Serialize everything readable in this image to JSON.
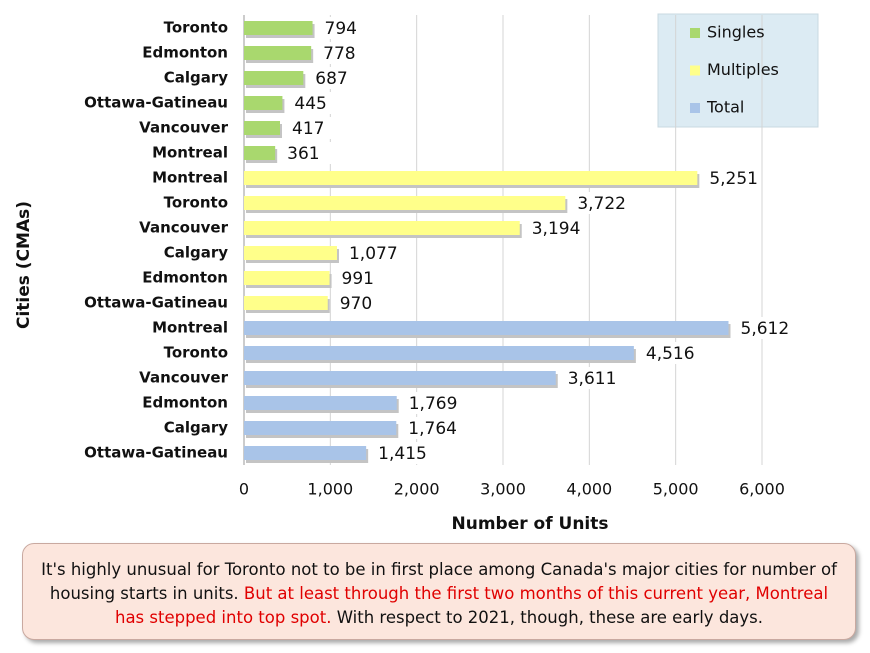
{
  "chart_data": {
    "type": "bar",
    "orientation": "horizontal",
    "x_label": "Number of Units",
    "y_label": "Cities (CMAs)",
    "categories": [
      "Toronto",
      "Edmonton",
      "Calgary",
      "Ottawa-Gatineau",
      "Vancouver",
      "Montreal",
      "Montreal",
      "Toronto",
      "Vancouver",
      "Calgary",
      "Edmonton",
      "Ottawa-Gatineau",
      "Montreal",
      "Toronto",
      "Vancouver",
      "Edmonton",
      "Calgary",
      "Ottawa-Gatineau"
    ],
    "series": [
      {
        "name": "Singles",
        "color": "#a9d86e",
        "values": [
          794,
          778,
          687,
          445,
          417,
          361,
          null,
          null,
          null,
          null,
          null,
          null,
          null,
          null,
          null,
          null,
          null,
          null
        ]
      },
      {
        "name": "Multiples",
        "color": "#ffff8a",
        "values": [
          null,
          null,
          null,
          null,
          null,
          null,
          5251,
          3722,
          3194,
          1077,
          991,
          970,
          null,
          null,
          null,
          null,
          null,
          null
        ],
        "value_labels": [
          null,
          null,
          null,
          null,
          null,
          null,
          "5,251",
          "3,722",
          "3,194",
          "1,077",
          "991",
          "970",
          null,
          null,
          null,
          null,
          null,
          null
        ]
      },
      {
        "name": "Total",
        "color": "#a9c4e8",
        "values": [
          null,
          null,
          null,
          null,
          null,
          null,
          null,
          null,
          null,
          null,
          null,
          null,
          5612,
          4516,
          3611,
          1769,
          1764,
          1415
        ],
        "value_labels": [
          null,
          null,
          null,
          null,
          null,
          null,
          null,
          null,
          null,
          null,
          null,
          null,
          "5,612",
          "4,516",
          "3,611",
          "1,769",
          "1,764",
          "1,415"
        ]
      }
    ],
    "xlim": [
      0,
      6000
    ],
    "xticks": [
      0,
      {
        "value": 1000,
        "label": "1,000"
      },
      {
        "value": 2000,
        "label": "2,000"
      },
      {
        "value": 3000,
        "label": "3,000"
      },
      {
        "value": 4000,
        "label": "4,000"
      },
      {
        "value": 5000,
        "label": "5,000"
      },
      {
        "value": 6000,
        "label": "6,000"
      }
    ],
    "grid": true,
    "legend": "top-right"
  },
  "caption": [
    "It's highly unusual for Toronto not to be in first place among Canada's major cities for number of housing starts in units.",
    "But at least through the first two months of this current year, Montreal has stepped into top spot.",
    "With respect to 2021, though, these are early days."
  ]
}
